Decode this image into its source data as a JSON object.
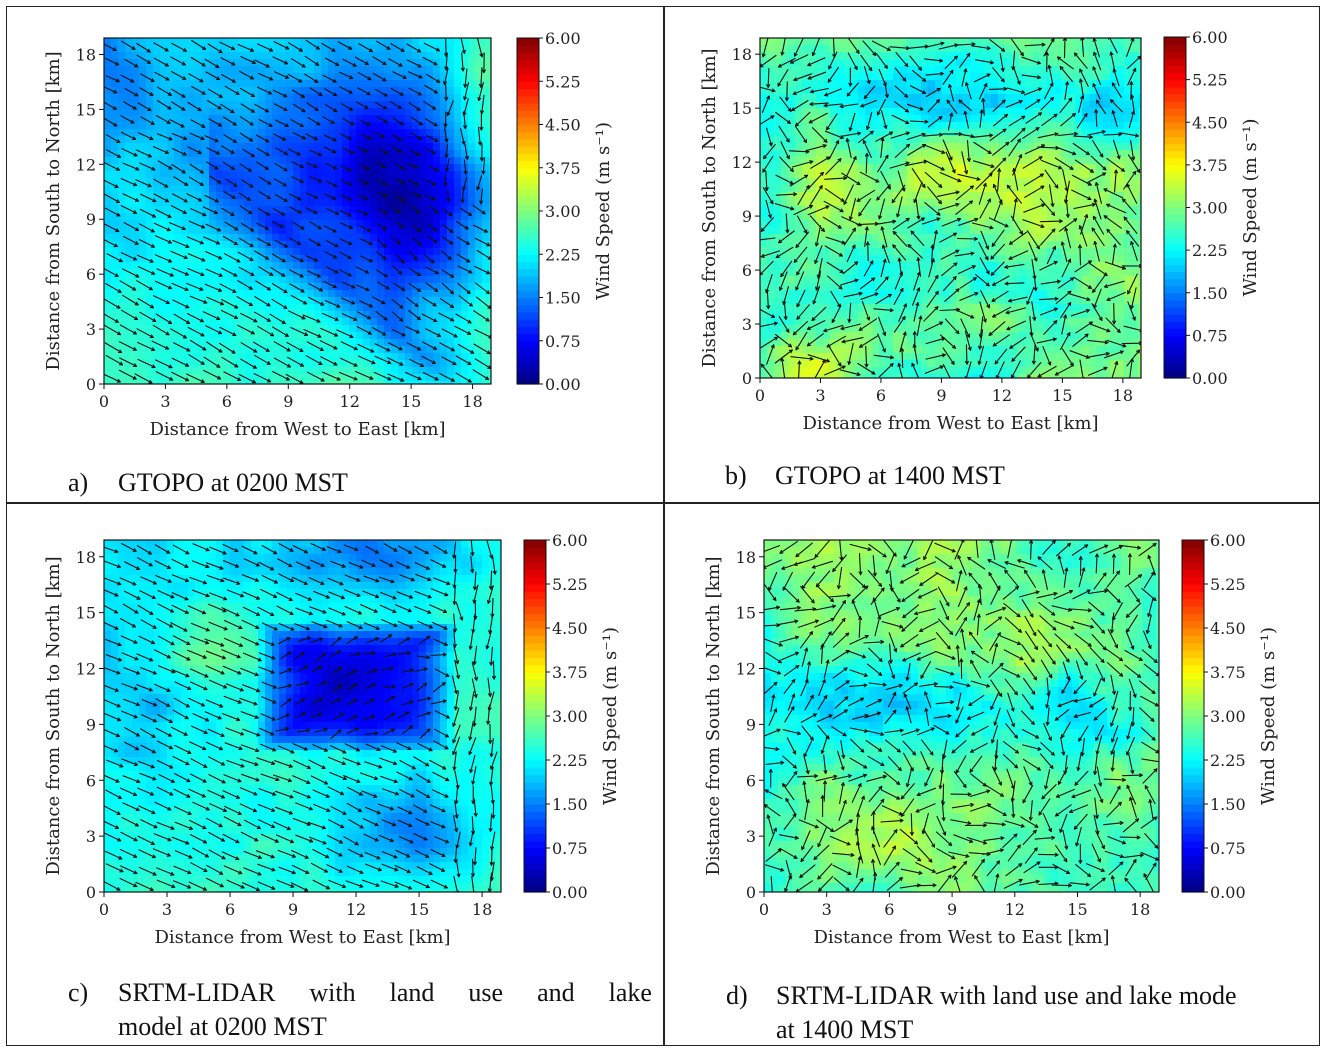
{
  "figure": {
    "colors": {
      "frame": "#222222",
      "colormap": [
        "#00007f",
        "#0000ff",
        "#007fff",
        "#00ffff",
        "#7fff7f",
        "#ffff00",
        "#ff7f00",
        "#ff0000",
        "#7f0000"
      ]
    }
  },
  "chart_data": [
    {
      "id": "a",
      "type": "heatmap",
      "subtype": "quiver-contourf",
      "xlabel": "Distance from West to East [km]",
      "ylabel": "Distance from South to North [km]",
      "xticks": [
        "0",
        "3",
        "6",
        "9",
        "12",
        "15",
        "18"
      ],
      "yticks": [
        "0",
        "3",
        "6",
        "9",
        "12",
        "15",
        "18"
      ],
      "xlim": [
        0,
        18.9
      ],
      "ylim": [
        0,
        18.9
      ],
      "colorbar": {
        "label": "Wind Speed (m s⁻¹)",
        "ticks": [
          "0.00",
          "0.75",
          "1.50",
          "2.25",
          "3.00",
          "3.75",
          "4.50",
          "5.25",
          "6.00"
        ],
        "range": [
          0,
          6
        ]
      },
      "field": "nighttime downslope flow from the northwest; calm core (<0.75 m/s) centered near x=15 km, y=9 km; 2.25 m/s along the western/southwestern margin",
      "caption_letter": "a)",
      "caption_text": "GTOPO at 0200 MST"
    },
    {
      "id": "b",
      "type": "heatmap",
      "subtype": "quiver-contourf",
      "xlabel": "Distance from West to East [km]",
      "ylabel": "Distance from South to North [km]",
      "xticks": [
        "0",
        "3",
        "6",
        "9",
        "12",
        "15",
        "18"
      ],
      "yticks": [
        "0",
        "3",
        "6",
        "9",
        "12",
        "15",
        "18"
      ],
      "xlim": [
        0,
        18.9
      ],
      "ylim": [
        0,
        18.9
      ],
      "colorbar": {
        "label": "Wind Speed (m s⁻¹)",
        "ticks": [
          "0.00",
          "0.75",
          "1.50",
          "2.25",
          "3.00",
          "3.75",
          "4.50",
          "5.25",
          "6.00"
        ],
        "range": [
          0,
          6
        ]
      },
      "field": "daytime field mostly 2.25-3.75 m/s with variable wind directions",
      "caption_letter": "b)",
      "caption_text": "GTOPO at 1400 MST"
    },
    {
      "id": "c",
      "type": "heatmap",
      "subtype": "quiver-contourf",
      "xlabel": "Distance from West to East [km]",
      "ylabel": "Distance from South to North [km]",
      "xticks": [
        "0",
        "3",
        "6",
        "9",
        "12",
        "15",
        "18"
      ],
      "yticks": [
        "0",
        "3",
        "6",
        "9",
        "12",
        "15",
        "18"
      ],
      "xlim": [
        0,
        18.9
      ],
      "ylim": [
        0,
        18.9
      ],
      "colorbar": {
        "label": "Wind Speed (m s⁻¹)",
        "ticks": [
          "0.00",
          "0.75",
          "1.50",
          "2.25",
          "3.00",
          "3.75",
          "4.50",
          "5.25",
          "6.00"
        ],
        "range": [
          0,
          6
        ]
      },
      "field": "nighttime flow with a calm core (<0.75 m/s) over x=8-16 km, y=8-14 km",
      "caption_letter": "c)",
      "caption_line1_words": [
        "SRTM-LIDAR",
        "with",
        "land",
        "use",
        "and",
        "lake"
      ],
      "caption_line2": "model at 0200 MST"
    },
    {
      "id": "d",
      "type": "heatmap",
      "subtype": "quiver-contourf",
      "xlabel": "Distance from West to East [km]",
      "ylabel": "Distance from South to North [km]",
      "xticks": [
        "0",
        "3",
        "6",
        "9",
        "12",
        "15",
        "18"
      ],
      "yticks": [
        "0",
        "3",
        "6",
        "9",
        "12",
        "15",
        "18"
      ],
      "xlim": [
        0,
        18.9
      ],
      "ylim": [
        0,
        18.9
      ],
      "colorbar": {
        "label": "Wind Speed (m s⁻¹)",
        "ticks": [
          "0.00",
          "0.75",
          "1.50",
          "2.25",
          "3.00",
          "3.75",
          "4.50",
          "5.25",
          "6.00"
        ],
        "range": [
          0,
          6
        ]
      },
      "field": "daytime field 2.25-3.75 m/s with a weaker (1.5-2.25 m/s) band across y=8-12 km",
      "caption_letter": "d)",
      "caption_line1": "SRTM-LIDAR with land use and lake mode",
      "caption_line2": "at 1400 MST"
    }
  ]
}
